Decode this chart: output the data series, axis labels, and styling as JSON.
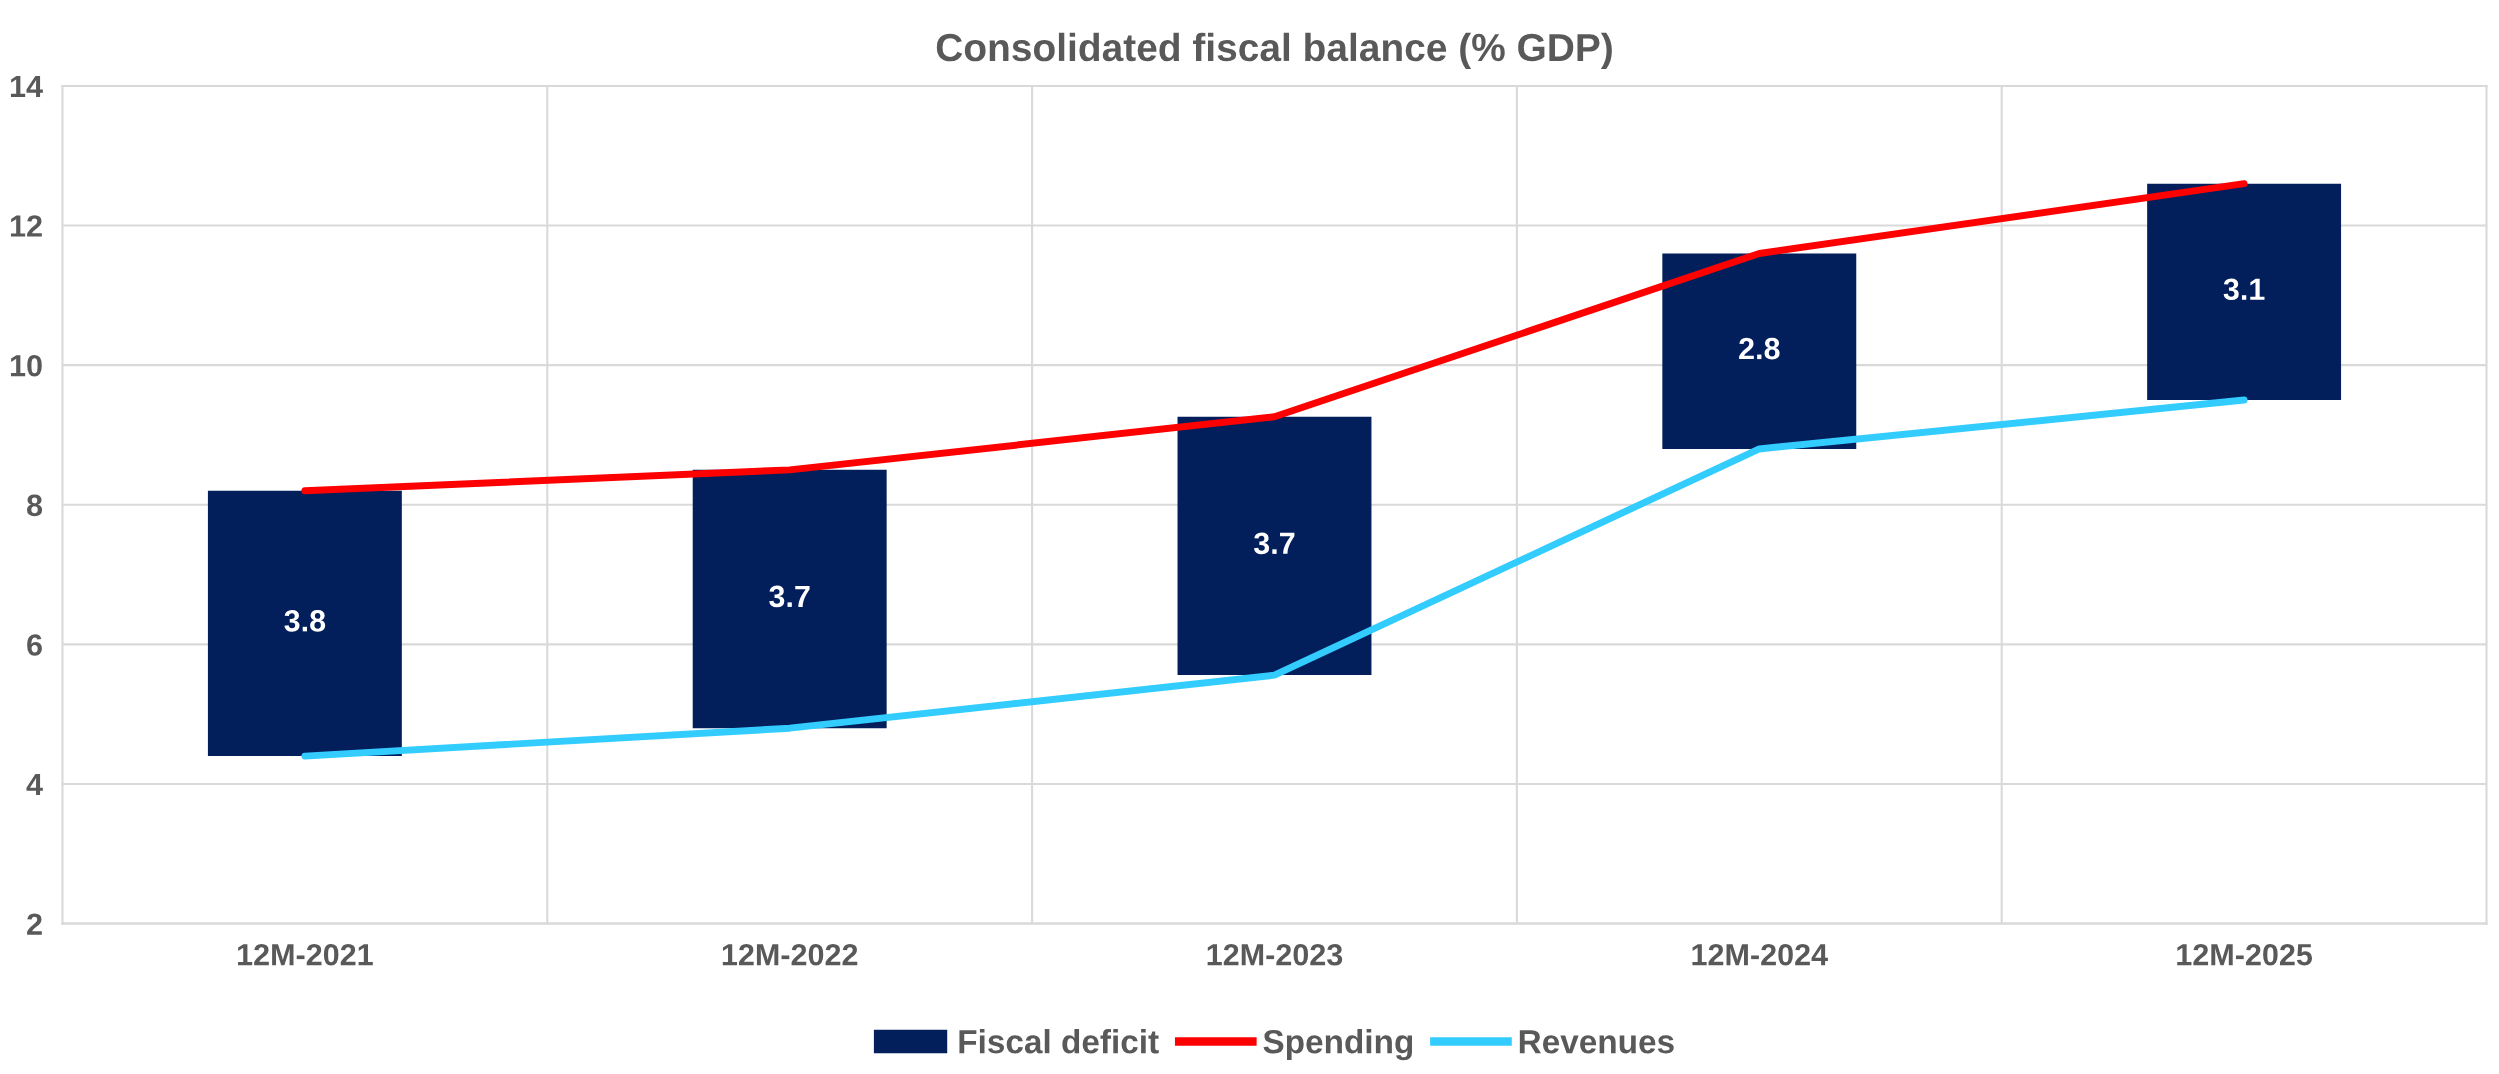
{
  "chart_data": {
    "type": "bar",
    "title": "Consolidated fiscal balance (% GDP)",
    "categories": [
      "12M-2021",
      "12M-2022",
      "12M-2023",
      "12M-2024",
      "12M-2025"
    ],
    "series": [
      {
        "name": "Fiscal deficit",
        "color": "#021f5c",
        "values": [
          3.8,
          3.7,
          3.7,
          2.8,
          3.1
        ],
        "base": [
          4.4,
          4.8,
          5.56,
          8.8,
          9.5
        ],
        "data_labels": true
      },
      {
        "name": "Spending",
        "type": "line",
        "color": "#ff0000",
        "values": [
          8.2,
          8.5,
          9.26,
          11.6,
          12.6
        ]
      },
      {
        "name": "Revenues",
        "type": "line",
        "color": "#33ccff",
        "values": [
          4.4,
          4.8,
          5.56,
          8.8,
          9.5
        ]
      }
    ],
    "ylim": [
      2,
      14
    ],
    "yticks": [
      2,
      4,
      6,
      8,
      10,
      12,
      14
    ],
    "grid": true,
    "legend": "bottom"
  }
}
